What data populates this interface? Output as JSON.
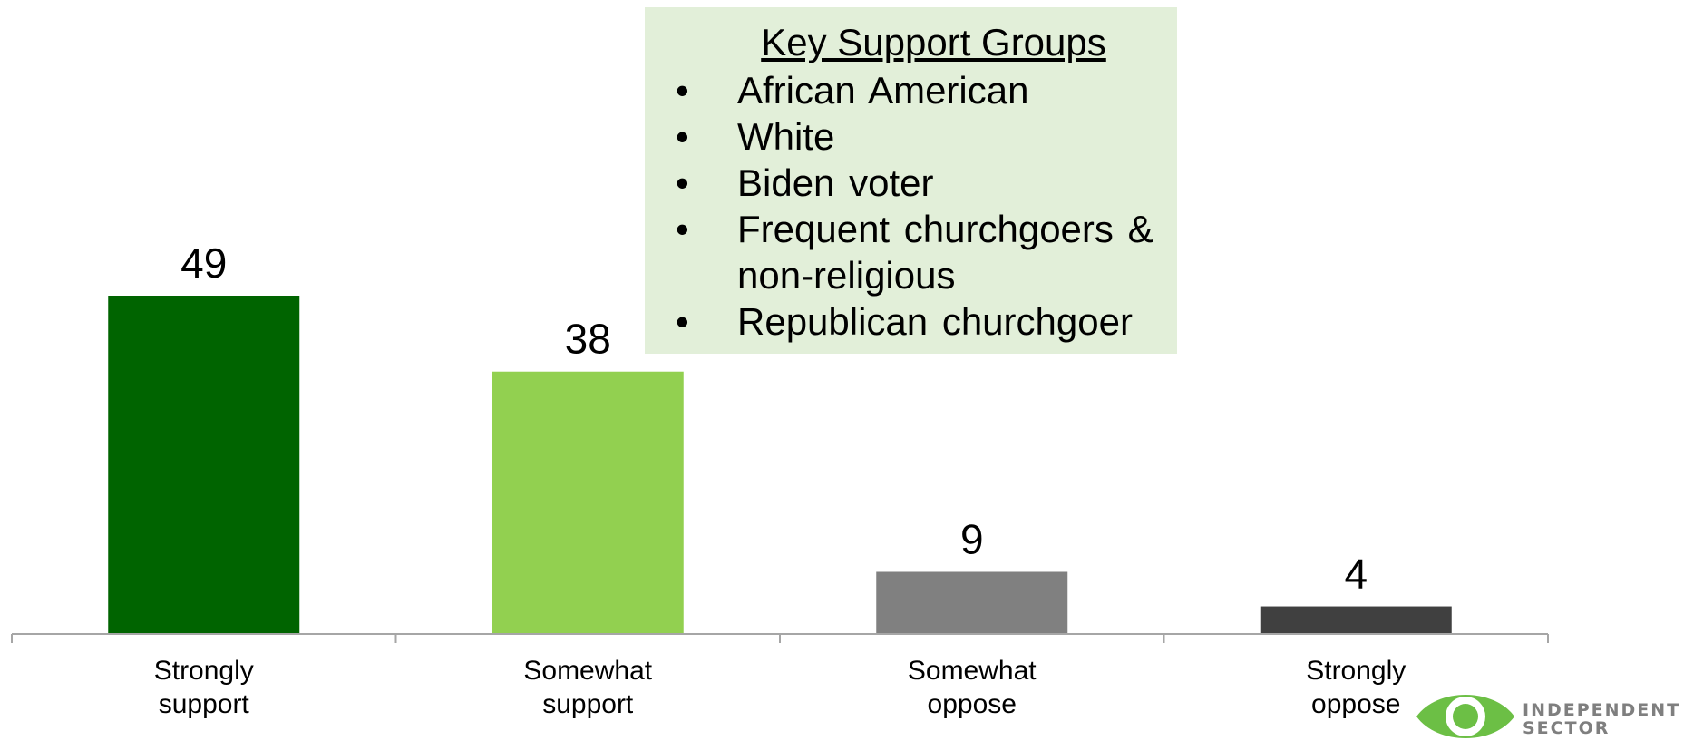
{
  "chart_data": {
    "type": "bar",
    "categories": [
      [
        "Strongly",
        "support"
      ],
      [
        "Somewhat",
        "support"
      ],
      [
        "Somewhat",
        "oppose"
      ],
      [
        "Strongly",
        "oppose"
      ]
    ],
    "values": [
      49,
      38,
      9,
      4
    ],
    "colors": [
      "#006400",
      "#92d050",
      "#808080",
      "#404040"
    ],
    "ylim": [
      0,
      49
    ],
    "title": "",
    "xlabel": "",
    "ylabel": "",
    "grid": false,
    "legend": "none"
  },
  "callout": {
    "title": "Key Support Groups",
    "background": "#e2efd9",
    "items": [
      [
        "African American"
      ],
      [
        "White"
      ],
      [
        "Biden voter"
      ],
      [
        "Frequent churchgoers &",
        "non-religious"
      ],
      [
        "Republican churchgoer"
      ]
    ]
  },
  "logo": {
    "line1": "INDEPENDENT",
    "line2": "SECTOR",
    "icon": "eye-icon",
    "color": "#6cbf45"
  }
}
